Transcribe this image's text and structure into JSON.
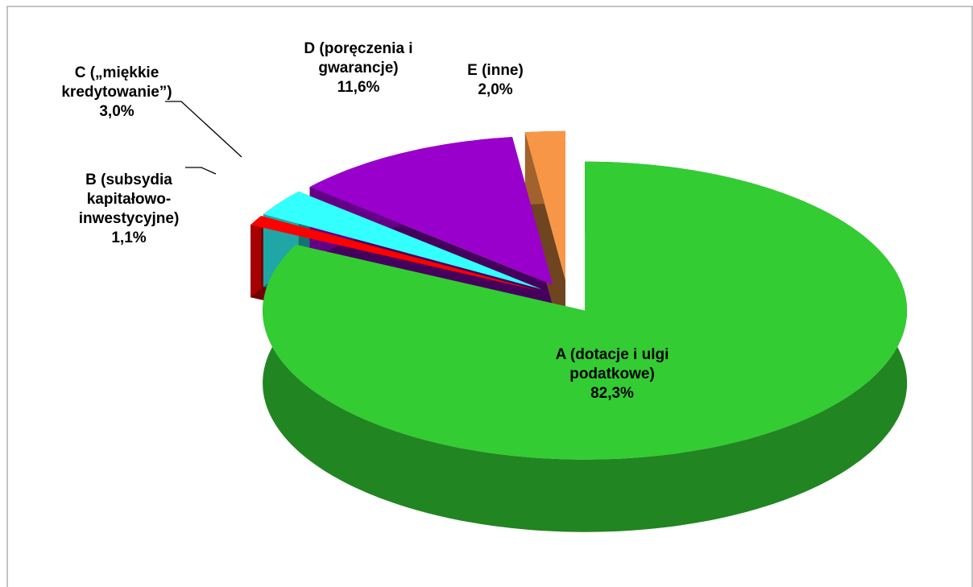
{
  "chart_data": {
    "type": "pie",
    "categories": [
      "A (dotacje i ulgi podatkowe)",
      "B (subsydia kapitałowo-inwestycyjne)",
      "C („miękkie kredytowanie”)",
      "D (poręczenia i gwarancje)",
      "E (inne)"
    ],
    "values": [
      82.3,
      1.1,
      3.0,
      11.6,
      2.0
    ],
    "value_labels": [
      "82,3%",
      "1,1%",
      "3,0%",
      "11,6%",
      "2,0%"
    ],
    "colors": [
      "#33cc33",
      "#ff0000",
      "#33ffff",
      "#9900cc",
      "#f79646"
    ]
  }
}
